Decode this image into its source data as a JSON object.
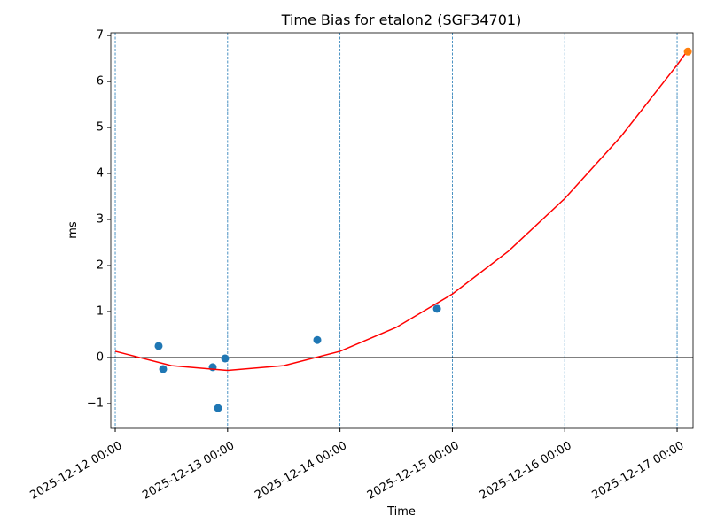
{
  "chart_data": {
    "type": "scatter",
    "title": "Time Bias for etalon2 (SGF34701)",
    "x_label": "Time",
    "y_label": "ms",
    "xlim": [
      "2025-12-11 23:03",
      "2025-12-17 03:24"
    ],
    "xticks": [
      "2025-12-12 00:00",
      "2025-12-13 00:00",
      "2025-12-14 00:00",
      "2025-12-15 00:00",
      "2025-12-16 00:00",
      "2025-12-17 00:00"
    ],
    "ylim": [
      -1.54,
      7.06
    ],
    "yticks": [
      {
        "value": -1,
        "label": "−1"
      },
      0,
      1,
      2,
      3,
      4,
      5,
      6,
      7
    ],
    "x_grid": true,
    "x_grid_color": "#1f77b4",
    "hline": 0,
    "hline_color": "#000000",
    "series": [
      {
        "type": "scatter",
        "color": "#1f77b4",
        "x": [
          "2025-12-12 09:16",
          "2025-12-12 10:13",
          "2025-12-12 20:49",
          "2025-12-12 21:57",
          "2025-12-12 23:28",
          "2025-12-13 19:09",
          "2025-12-14 20:43"
        ],
        "values": [
          0.25,
          -0.25,
          -0.21,
          -1.1,
          -0.02,
          0.38,
          1.06
        ]
      },
      {
        "type": "line",
        "color": "#ff0000",
        "x": [
          "2025-12-12 00:00",
          "2025-12-12 12:00",
          "2025-12-13 00:00",
          "2025-12-13 12:00",
          "2025-12-14 00:00",
          "2025-12-14 12:00",
          "2025-12-15 00:00",
          "2025-12-15 12:00",
          "2025-12-16 00:00",
          "2025-12-16 12:00",
          "2025-12-17 00:00",
          "2025-12-17 02:17"
        ],
        "values": [
          0.135,
          -0.176,
          -0.28,
          -0.176,
          0.135,
          0.654,
          1.38,
          2.314,
          3.455,
          4.804,
          6.36,
          6.68
        ]
      },
      {
        "type": "scatter",
        "color": "#ff7f0e",
        "x": [
          "2025-12-17 02:17"
        ],
        "values": [
          6.65
        ]
      }
    ]
  }
}
